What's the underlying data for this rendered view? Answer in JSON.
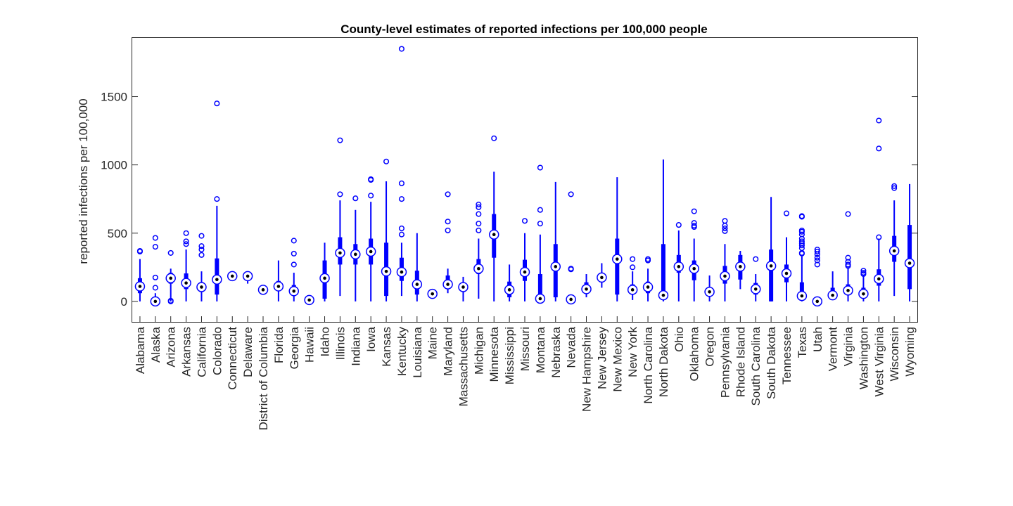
{
  "chart_data": {
    "type": "boxplot",
    "title": "County-level estimates of reported infections per 100,000 people",
    "xlabel": "",
    "ylabel": "reported infections per 100,000",
    "ylim": [
      -150,
      1930
    ],
    "yticks": [
      0,
      500,
      1000,
      1500
    ],
    "ytick_labels": [
      "0",
      "500",
      "1000",
      "1500"
    ],
    "grid": false,
    "colors": {
      "box": "#0000ff",
      "median_marker": "#000000",
      "outlier": "#0000ff",
      "axis": "#262626"
    },
    "categories": [
      "Alabama",
      "Alaska",
      "Arizona",
      "Arkansas",
      "California",
      "Colorado",
      "Connecticut",
      "Delaware",
      "District of Columbia",
      "Florida",
      "Georgia",
      "Hawaii",
      "Idaho",
      "Illinois",
      "Indiana",
      "Iowa",
      "Kansas",
      "Kentucky",
      "Louisiana",
      "Maine",
      "Maryland",
      "Massachusetts",
      "Michigan",
      "Minnesota",
      "Mississippi",
      "Missouri",
      "Montana",
      "Nebraska",
      "Nevada",
      "New Hampshire",
      "New Jersey",
      "New Mexico",
      "New York",
      "North Carolina",
      "North Dakota",
      "Ohio",
      "Oklahoma",
      "Oregon",
      "Pennsylvania",
      "Rhode Island",
      "South Carolina",
      "South Dakota",
      "Tennessee",
      "Texas",
      "Utah",
      "Vermont",
      "Virginia",
      "Washington",
      "West Virginia",
      "Wisconsin",
      "Wyoming"
    ],
    "boxes": [
      {
        "whisker_low": 0,
        "q1": 60,
        "median": 110,
        "q3": 170,
        "whisker_high": 310,
        "outliers": [
          365,
          370
        ]
      },
      {
        "whisker_low": 0,
        "q1": 0,
        "median": 0,
        "q3": 20,
        "whisker_high": 60,
        "outliers": [
          100,
          175,
          400,
          465
        ]
      },
      {
        "whisker_low": 0,
        "q1": 130,
        "median": 170,
        "q3": 210,
        "whisker_high": 240,
        "outliers": [
          0,
          5,
          355
        ]
      },
      {
        "whisker_low": 0,
        "q1": 90,
        "median": 135,
        "q3": 205,
        "whisker_high": 380,
        "outliers": [
          420,
          440,
          500
        ]
      },
      {
        "whisker_low": 0,
        "q1": 70,
        "median": 105,
        "q3": 140,
        "whisker_high": 220,
        "outliers": [
          340,
          380,
          405,
          480
        ]
      },
      {
        "whisker_low": 0,
        "q1": 50,
        "median": 160,
        "q3": 315,
        "whisker_high": 700,
        "outliers": [
          750,
          1450
        ]
      },
      {
        "whisker_low": 170,
        "q1": 175,
        "median": 185,
        "q3": 195,
        "whisker_high": 200,
        "outliers": []
      },
      {
        "whisker_low": 130,
        "q1": 160,
        "median": 185,
        "q3": 195,
        "whisker_high": 205,
        "outliers": []
      },
      {
        "whisker_low": 80,
        "q1": 82,
        "median": 85,
        "q3": 88,
        "whisker_high": 90,
        "outliers": []
      },
      {
        "whisker_low": 0,
        "q1": 80,
        "median": 110,
        "q3": 150,
        "whisker_high": 300,
        "outliers": []
      },
      {
        "whisker_low": 0,
        "q1": 40,
        "median": 75,
        "q3": 120,
        "whisker_high": 210,
        "outliers": [
          270,
          350,
          445
        ]
      },
      {
        "whisker_low": 0,
        "q1": 5,
        "median": 10,
        "q3": 15,
        "whisker_high": 20,
        "outliers": []
      },
      {
        "whisker_low": 0,
        "q1": 20,
        "median": 170,
        "q3": 300,
        "whisker_high": 430,
        "outliers": []
      },
      {
        "whisker_low": 40,
        "q1": 270,
        "median": 355,
        "q3": 470,
        "whisker_high": 740,
        "outliers": [
          785,
          1180
        ]
      },
      {
        "whisker_low": 0,
        "q1": 270,
        "median": 345,
        "q3": 420,
        "whisker_high": 670,
        "outliers": [
          755
        ]
      },
      {
        "whisker_low": 0,
        "q1": 270,
        "median": 365,
        "q3": 460,
        "whisker_high": 730,
        "outliers": [
          775,
          890,
          895
        ]
      },
      {
        "whisker_low": 0,
        "q1": 40,
        "median": 220,
        "q3": 430,
        "whisker_high": 880,
        "outliers": [
          1025
        ]
      },
      {
        "whisker_low": 40,
        "q1": 150,
        "median": 215,
        "q3": 320,
        "whisker_high": 430,
        "outliers": [
          490,
          535,
          750,
          865,
          1850
        ]
      },
      {
        "whisker_low": 0,
        "q1": 50,
        "median": 125,
        "q3": 225,
        "whisker_high": 500,
        "outliers": []
      },
      {
        "whisker_low": 30,
        "q1": 45,
        "median": 55,
        "q3": 65,
        "whisker_high": 70,
        "outliers": []
      },
      {
        "whisker_low": 60,
        "q1": 100,
        "median": 125,
        "q3": 190,
        "whisker_high": 240,
        "outliers": [
          520,
          585,
          785
        ]
      },
      {
        "whisker_low": 0,
        "q1": 80,
        "median": 105,
        "q3": 125,
        "whisker_high": 180,
        "outliers": []
      },
      {
        "whisker_low": 20,
        "q1": 200,
        "median": 240,
        "q3": 310,
        "whisker_high": 460,
        "outliers": [
          520,
          570,
          640,
          690,
          710
        ]
      },
      {
        "whisker_low": 0,
        "q1": 320,
        "median": 490,
        "q3": 640,
        "whisker_high": 950,
        "outliers": [
          1195
        ]
      },
      {
        "whisker_low": 0,
        "q1": 30,
        "median": 85,
        "q3": 145,
        "whisker_high": 270,
        "outliers": []
      },
      {
        "whisker_low": 0,
        "q1": 150,
        "median": 215,
        "q3": 305,
        "whisker_high": 500,
        "outliers": [
          590
        ]
      },
      {
        "whisker_low": 0,
        "q1": 10,
        "median": 20,
        "q3": 200,
        "whisker_high": 490,
        "outliers": [
          570,
          670,
          980
        ]
      },
      {
        "whisker_low": 0,
        "q1": 30,
        "median": 255,
        "q3": 420,
        "whisker_high": 875,
        "outliers": []
      },
      {
        "whisker_low": 0,
        "q1": 5,
        "median": 15,
        "q3": 30,
        "whisker_high": 40,
        "outliers": [
          235,
          240,
          785
        ]
      },
      {
        "whisker_low": 30,
        "q1": 60,
        "median": 90,
        "q3": 140,
        "whisker_high": 200,
        "outliers": []
      },
      {
        "whisker_low": 100,
        "q1": 140,
        "median": 175,
        "q3": 210,
        "whisker_high": 280,
        "outliers": []
      },
      {
        "whisker_low": 0,
        "q1": 50,
        "median": 310,
        "q3": 460,
        "whisker_high": 910,
        "outliers": []
      },
      {
        "whisker_low": 10,
        "q1": 60,
        "median": 85,
        "q3": 125,
        "whisker_high": 220,
        "outliers": [
          250,
          310
        ]
      },
      {
        "whisker_low": 0,
        "q1": 60,
        "median": 105,
        "q3": 145,
        "whisker_high": 240,
        "outliers": [
          300,
          310
        ]
      },
      {
        "whisker_low": 0,
        "q1": 10,
        "median": 45,
        "q3": 420,
        "whisker_high": 1040,
        "outliers": []
      },
      {
        "whisker_low": 0,
        "q1": 210,
        "median": 255,
        "q3": 340,
        "whisker_high": 520,
        "outliers": [
          560
        ]
      },
      {
        "whisker_low": 0,
        "q1": 155,
        "median": 240,
        "q3": 300,
        "whisker_high": 460,
        "outliers": [
          545,
          555,
          575,
          660
        ]
      },
      {
        "whisker_low": 0,
        "q1": 40,
        "median": 70,
        "q3": 100,
        "whisker_high": 190,
        "outliers": []
      },
      {
        "whisker_low": 0,
        "q1": 130,
        "median": 185,
        "q3": 260,
        "whisker_high": 420,
        "outliers": [
          515,
          535,
          555,
          590
        ]
      },
      {
        "whisker_low": 90,
        "q1": 160,
        "median": 255,
        "q3": 340,
        "whisker_high": 370,
        "outliers": []
      },
      {
        "whisker_low": 0,
        "q1": 50,
        "median": 90,
        "q3": 135,
        "whisker_high": 200,
        "outliers": [
          310
        ]
      },
      {
        "whisker_low": 0,
        "q1": 0,
        "median": 260,
        "q3": 380,
        "whisker_high": 765,
        "outliers": []
      },
      {
        "whisker_low": 0,
        "q1": 140,
        "median": 205,
        "q3": 270,
        "whisker_high": 470,
        "outliers": [
          645
        ]
      },
      {
        "whisker_low": 0,
        "q1": 10,
        "median": 40,
        "q3": 140,
        "whisker_high": 330,
        "outliers": [
          350,
          355,
          390,
          410,
          425,
          440,
          460,
          490,
          510,
          520,
          620,
          625
        ]
      },
      {
        "whisker_low": 0,
        "q1": 0,
        "median": 0,
        "q3": 5,
        "whisker_high": 10,
        "outliers": [
          270,
          300,
          320,
          345,
          365,
          380
        ]
      },
      {
        "whisker_low": 10,
        "q1": 30,
        "median": 45,
        "q3": 100,
        "whisker_high": 220,
        "outliers": []
      },
      {
        "whisker_low": 0,
        "q1": 50,
        "median": 80,
        "q3": 125,
        "whisker_high": 250,
        "outliers": [
          260,
          270,
          290,
          320,
          640
        ]
      },
      {
        "whisker_low": 0,
        "q1": 30,
        "median": 55,
        "q3": 100,
        "whisker_high": 190,
        "outliers": [
          200,
          210,
          225
        ]
      },
      {
        "whisker_low": 0,
        "q1": 115,
        "median": 165,
        "q3": 235,
        "whisker_high": 460,
        "outliers": [
          470,
          1120,
          1325
        ]
      },
      {
        "whisker_low": 40,
        "q1": 290,
        "median": 370,
        "q3": 480,
        "whisker_high": 740,
        "outliers": [
          830,
          845
        ]
      },
      {
        "whisker_low": 0,
        "q1": 90,
        "median": 280,
        "q3": 560,
        "whisker_high": 860,
        "outliers": []
      }
    ]
  }
}
